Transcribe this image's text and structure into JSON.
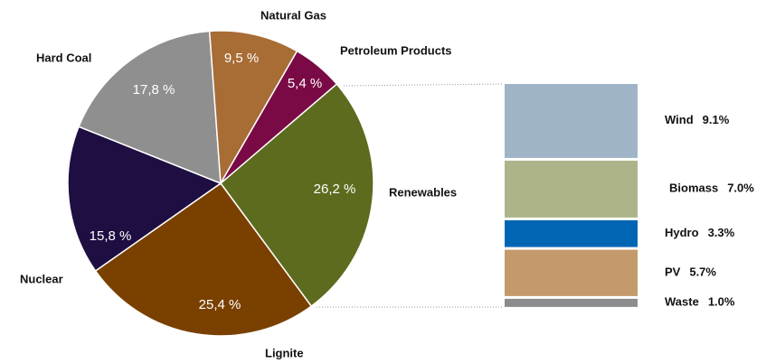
{
  "chart_data": [
    {
      "type": "pie",
      "categories": [
        "Renewables",
        "Lignite",
        "Nuclear",
        "Hard Coal",
        "Natural Gas",
        "Petroleum Products"
      ],
      "values": [
        26.2,
        25.4,
        15.8,
        17.8,
        9.5,
        5.4
      ],
      "value_labels": [
        "26,2 %",
        "25,4 %",
        "15,8 %",
        "17,8 %",
        "9,5 %",
        "5,4 %"
      ],
      "colors": [
        "#5c6b1e",
        "#7a4000",
        "#1e0e42",
        "#8f8f8f",
        "#a86c35",
        "#7a0a45"
      ]
    },
    {
      "type": "bar",
      "categories": [
        "Wind",
        "Biomass",
        "Hydro",
        "PV",
        "Waste"
      ],
      "values": [
        9.1,
        7.0,
        3.3,
        5.7,
        1.0
      ],
      "value_labels": [
        "9.1%",
        "7.0%",
        "3.3%",
        "5.7%",
        "1.0%"
      ],
      "colors": [
        "#9fb4c7",
        "#adb48a",
        "#0066b3",
        "#c49a6c",
        "#8c8c8c"
      ]
    }
  ]
}
